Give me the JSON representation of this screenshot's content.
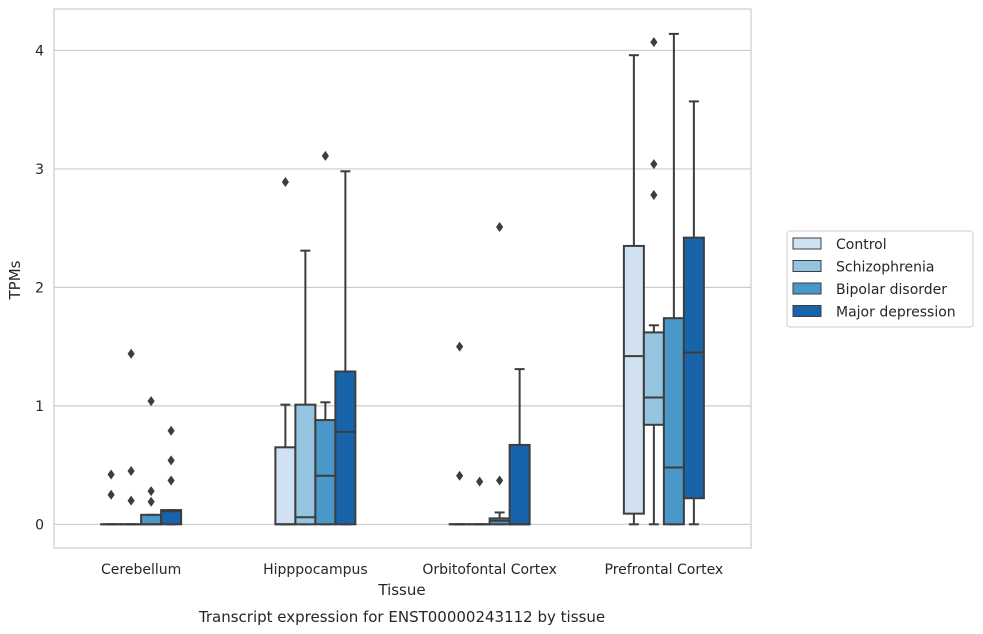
{
  "chart_data": {
    "type": "box",
    "caption": "Transcript expression for ENST00000243112 by tissue",
    "xlabel": "Tissue",
    "ylabel": "TPMs",
    "ylim": [
      -0.2,
      4.35
    ],
    "yticks": [
      0,
      1,
      2,
      3,
      4
    ],
    "grid": "horizontal",
    "legend_position": "right",
    "categories": [
      "Cerebellum",
      "Hipppocampus",
      "Orbitofontal Cortex",
      "Prefrontal Cortex"
    ],
    "series": [
      {
        "name": "Control",
        "color": "#d0e1f2",
        "boxes": [
          {
            "whisker_low": 0,
            "q1": 0,
            "median": 0,
            "q3": 0,
            "whisker_high": 0,
            "outliers": [
              0.42,
              0.25
            ]
          },
          {
            "whisker_low": 0,
            "q1": 0,
            "median": 0,
            "q3": 0.65,
            "whisker_high": 1.01,
            "outliers": [
              2.89
            ]
          },
          {
            "whisker_low": 0,
            "q1": 0,
            "median": 0,
            "q3": 0,
            "whisker_high": 0,
            "outliers": [
              1.5,
              0.41
            ]
          },
          {
            "whisker_low": 0,
            "q1": 0.09,
            "median": 1.42,
            "q3": 2.35,
            "whisker_high": 3.96,
            "outliers": []
          }
        ]
      },
      {
        "name": "Schizophrenia",
        "color": "#94c4df",
        "boxes": [
          {
            "whisker_low": 0,
            "q1": 0,
            "median": 0,
            "q3": 0,
            "whisker_high": 0,
            "outliers": [
              1.44,
              0.45,
              0.2
            ]
          },
          {
            "whisker_low": 0,
            "q1": 0,
            "median": 0.06,
            "q3": 1.01,
            "whisker_high": 2.31,
            "outliers": []
          },
          {
            "whisker_low": 0,
            "q1": 0,
            "median": 0,
            "q3": 0,
            "whisker_high": 0,
            "outliers": [
              0.36
            ]
          },
          {
            "whisker_low": 0,
            "q1": 0.84,
            "median": 1.07,
            "q3": 1.62,
            "whisker_high": 1.68,
            "outliers": [
              4.07,
              3.04,
              2.78
            ]
          }
        ]
      },
      {
        "name": "Bipolar disorder",
        "color": "#4a98c9",
        "boxes": [
          {
            "whisker_low": 0,
            "q1": 0,
            "median": 0,
            "q3": 0.08,
            "whisker_high": 0.08,
            "outliers": [
              1.04,
              0.28,
              0.19
            ]
          },
          {
            "whisker_low": 0,
            "q1": 0,
            "median": 0.41,
            "q3": 0.88,
            "whisker_high": 1.03,
            "outliers": [
              3.11
            ]
          },
          {
            "whisker_low": 0,
            "q1": 0,
            "median": 0.03,
            "q3": 0.05,
            "whisker_high": 0.1,
            "outliers": [
              2.51,
              0.37
            ]
          },
          {
            "whisker_low": 0,
            "q1": 0,
            "median": 0.48,
            "q3": 1.74,
            "whisker_high": 4.14,
            "outliers": []
          }
        ]
      },
      {
        "name": "Major depression",
        "color": "#1764ab",
        "boxes": [
          {
            "whisker_low": 0,
            "q1": 0,
            "median": 0.11,
            "q3": 0.12,
            "whisker_high": 0.12,
            "outliers": [
              0.79,
              0.54,
              0.37
            ]
          },
          {
            "whisker_low": 0,
            "q1": 0,
            "median": 0.78,
            "q3": 1.29,
            "whisker_high": 2.98,
            "outliers": []
          },
          {
            "whisker_low": 0,
            "q1": 0,
            "median": 0,
            "q3": 0.67,
            "whisker_high": 1.31,
            "outliers": []
          },
          {
            "whisker_low": 0,
            "q1": 0.22,
            "median": 1.45,
            "q3": 2.42,
            "whisker_high": 3.57,
            "outliers": []
          }
        ]
      }
    ]
  }
}
